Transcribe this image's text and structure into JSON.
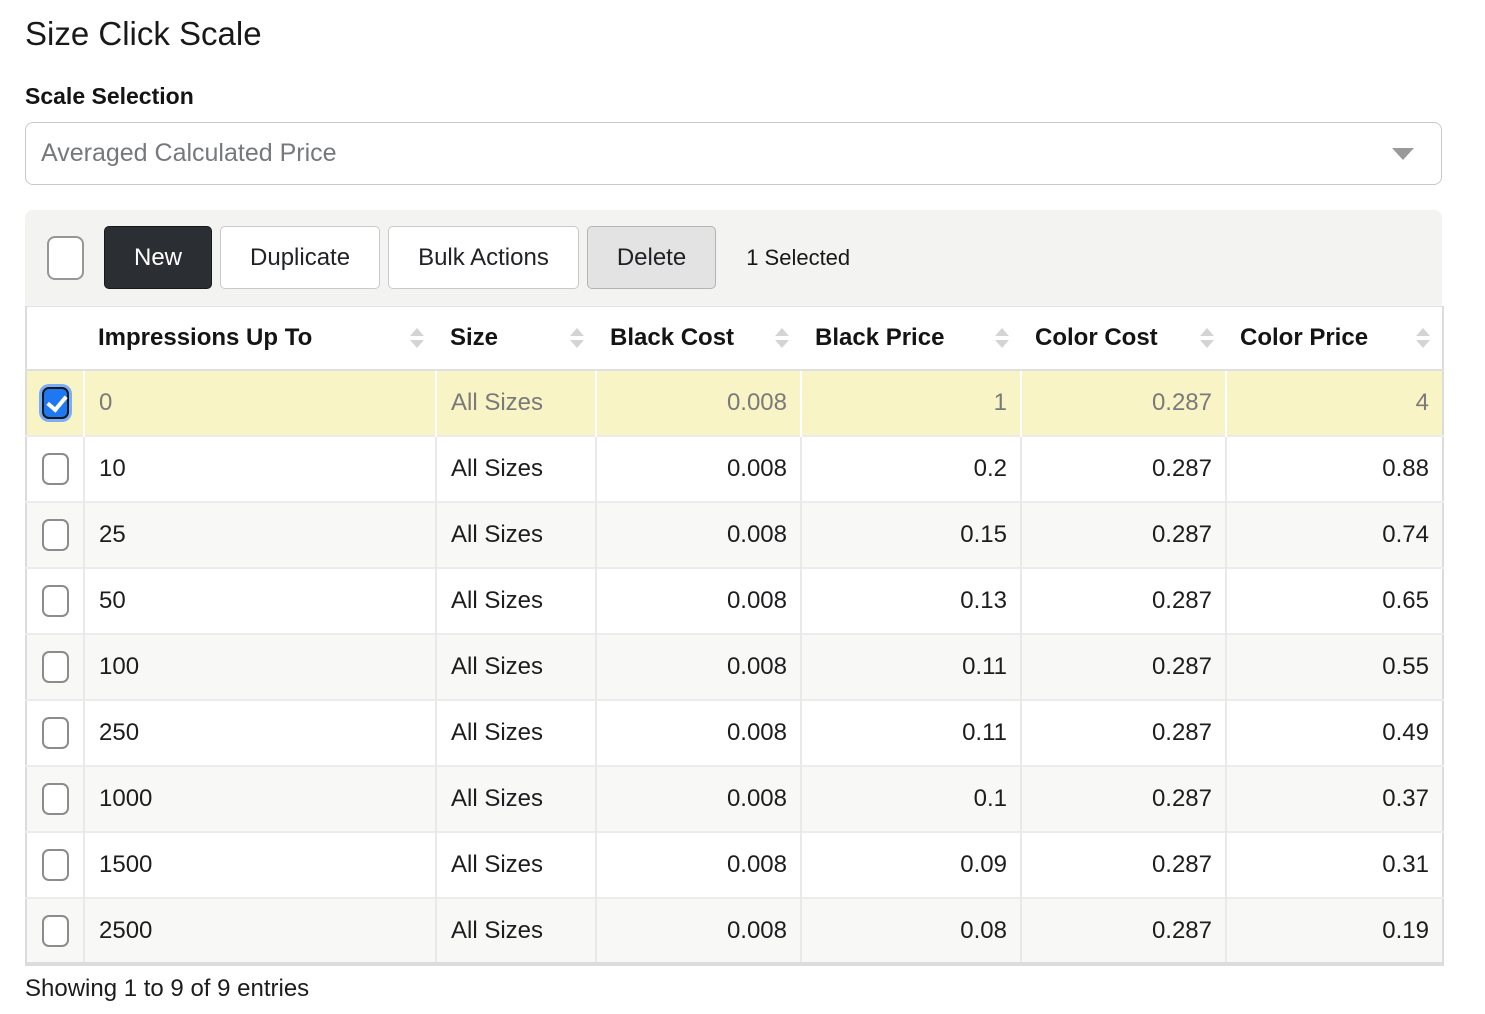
{
  "page": {
    "title": "Size Click Scale",
    "scale_selection_label": "Scale Selection",
    "scale_selection_value": "Averaged Calculated Price",
    "footer": "Showing 1 to 9 of 9 entries"
  },
  "toolbar": {
    "new_label": "New",
    "duplicate_label": "Duplicate",
    "bulk_actions_label": "Bulk Actions",
    "delete_label": "Delete",
    "selected_count": "1 Selected",
    "select_all_checked": false
  },
  "table": {
    "columns": [
      "Impressions Up To",
      "Size",
      "Black Cost",
      "Black Price",
      "Color Cost",
      "Color Price"
    ],
    "rows": [
      {
        "selected": true,
        "impressions": "0",
        "size": "All Sizes",
        "black_cost": "0.008",
        "black_price": "1",
        "color_cost": "0.287",
        "color_price": "4"
      },
      {
        "selected": false,
        "impressions": "10",
        "size": "All Sizes",
        "black_cost": "0.008",
        "black_price": "0.2",
        "color_cost": "0.287",
        "color_price": "0.88"
      },
      {
        "selected": false,
        "impressions": "25",
        "size": "All Sizes",
        "black_cost": "0.008",
        "black_price": "0.15",
        "color_cost": "0.287",
        "color_price": "0.74"
      },
      {
        "selected": false,
        "impressions": "50",
        "size": "All Sizes",
        "black_cost": "0.008",
        "black_price": "0.13",
        "color_cost": "0.287",
        "color_price": "0.65"
      },
      {
        "selected": false,
        "impressions": "100",
        "size": "All Sizes",
        "black_cost": "0.008",
        "black_price": "0.11",
        "color_cost": "0.287",
        "color_price": "0.55"
      },
      {
        "selected": false,
        "impressions": "250",
        "size": "All Sizes",
        "black_cost": "0.008",
        "black_price": "0.11",
        "color_cost": "0.287",
        "color_price": "0.49"
      },
      {
        "selected": false,
        "impressions": "1000",
        "size": "All Sizes",
        "black_cost": "0.008",
        "black_price": "0.1",
        "color_cost": "0.287",
        "color_price": "0.37"
      },
      {
        "selected": false,
        "impressions": "1500",
        "size": "All Sizes",
        "black_cost": "0.008",
        "black_price": "0.09",
        "color_cost": "0.287",
        "color_price": "0.31"
      },
      {
        "selected": false,
        "impressions": "2500",
        "size": "All Sizes",
        "black_cost": "0.008",
        "black_price": "0.08",
        "color_cost": "0.287",
        "color_price": "0.19"
      }
    ]
  },
  "colors": {
    "selected_row_bg": "#f9f4c5",
    "checkbox_checked": "#1e78f2",
    "dark_button_bg": "#2b2e32",
    "toolbar_bg": "#f3f3f1",
    "stripe_bg": "#f8f8f7",
    "sort_icon": "#d4d4d4"
  }
}
